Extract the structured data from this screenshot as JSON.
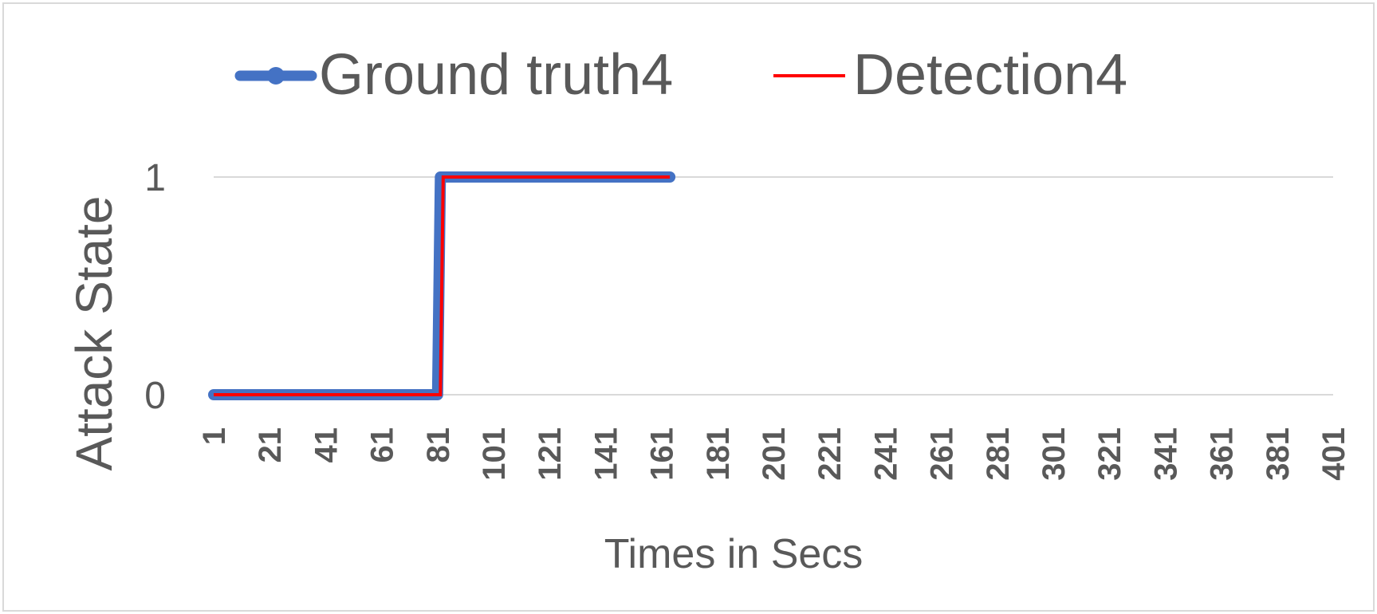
{
  "chart_data": {
    "type": "line",
    "title": "",
    "xlabel": "Times in Secs",
    "ylabel": "Attack State",
    "x_categories": [
      "1",
      "21",
      "41",
      "61",
      "81",
      "101",
      "121",
      "141",
      "161",
      "181",
      "201",
      "221",
      "241",
      "261",
      "281",
      "301",
      "321",
      "341",
      "361",
      "381",
      "401"
    ],
    "x_range": [
      1,
      401
    ],
    "yticks": [
      "0",
      "1"
    ],
    "ylim": [
      0,
      1
    ],
    "grid": true,
    "legend_position": "top",
    "series": [
      {
        "name": "Ground truth4",
        "color": "#4472C4",
        "step": true,
        "x": [
          1,
          81,
          82,
          164
        ],
        "y": [
          0,
          0,
          1,
          1
        ]
      },
      {
        "name": "Detection4",
        "color": "#FF0000",
        "step": true,
        "x": [
          1,
          82,
          83,
          164
        ],
        "y": [
          0,
          0,
          1,
          1
        ]
      }
    ]
  }
}
